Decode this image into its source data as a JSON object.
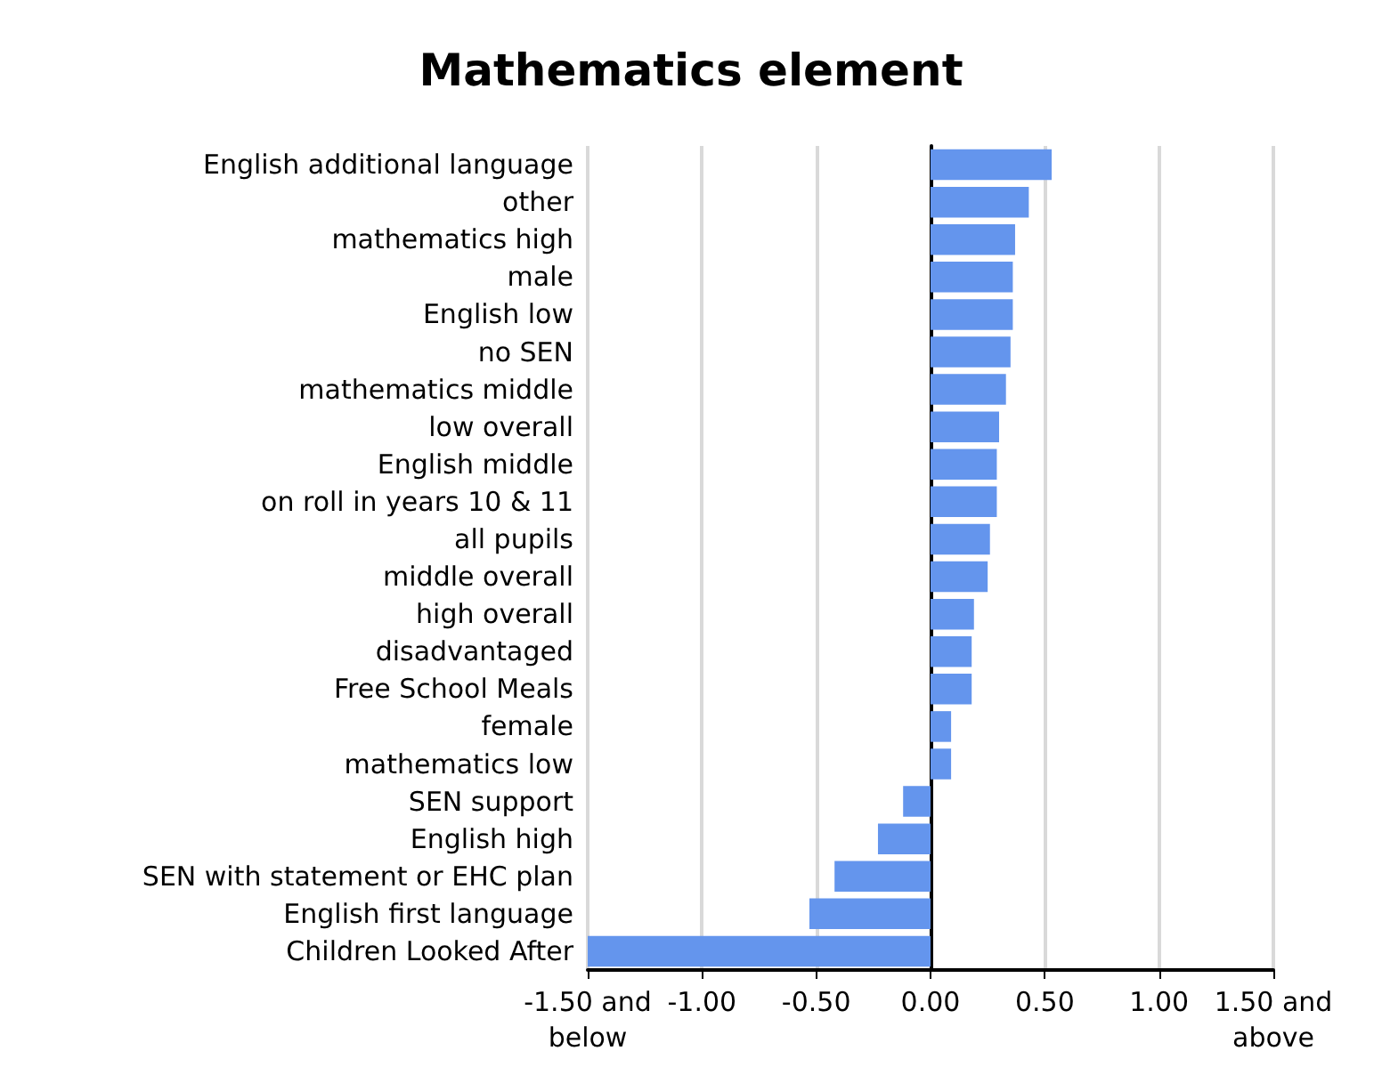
{
  "chart_data": {
    "type": "bar",
    "orientation": "horizontal",
    "title": "Mathematics element",
    "categories": [
      "English additional language",
      "other",
      "mathematics high",
      "male",
      "English low",
      "no SEN",
      "mathematics middle",
      "low overall",
      "English middle",
      "on roll in years 10 & 11",
      "all pupils",
      "middle overall",
      "high overall",
      "disadvantaged",
      "Free School Meals",
      "female",
      "mathematics low",
      "SEN support",
      "English high",
      "SEN with statement or EHC plan",
      "English first language",
      "Children Looked After"
    ],
    "values": [
      0.53,
      0.43,
      0.37,
      0.36,
      0.36,
      0.35,
      0.33,
      0.3,
      0.29,
      0.29,
      0.26,
      0.25,
      0.19,
      0.18,
      0.18,
      0.09,
      0.09,
      -0.12,
      -0.23,
      -0.42,
      -0.53,
      -1.5
    ],
    "color": "#6495ed",
    "xlim": [
      -1.5,
      1.5
    ],
    "xticks": [
      {
        "value": -1.5,
        "label": "-1.50 and\nbelow"
      },
      {
        "value": -1,
        "label": "-1.00"
      },
      {
        "value": -0.5,
        "label": "-0.50"
      },
      {
        "value": 0,
        "label": "0.00"
      },
      {
        "value": 0.5,
        "label": "0.50"
      },
      {
        "value": 1,
        "label": "1.00"
      },
      {
        "value": 1.5,
        "label": "1.50 and\nabove"
      }
    ],
    "grid": "x"
  }
}
